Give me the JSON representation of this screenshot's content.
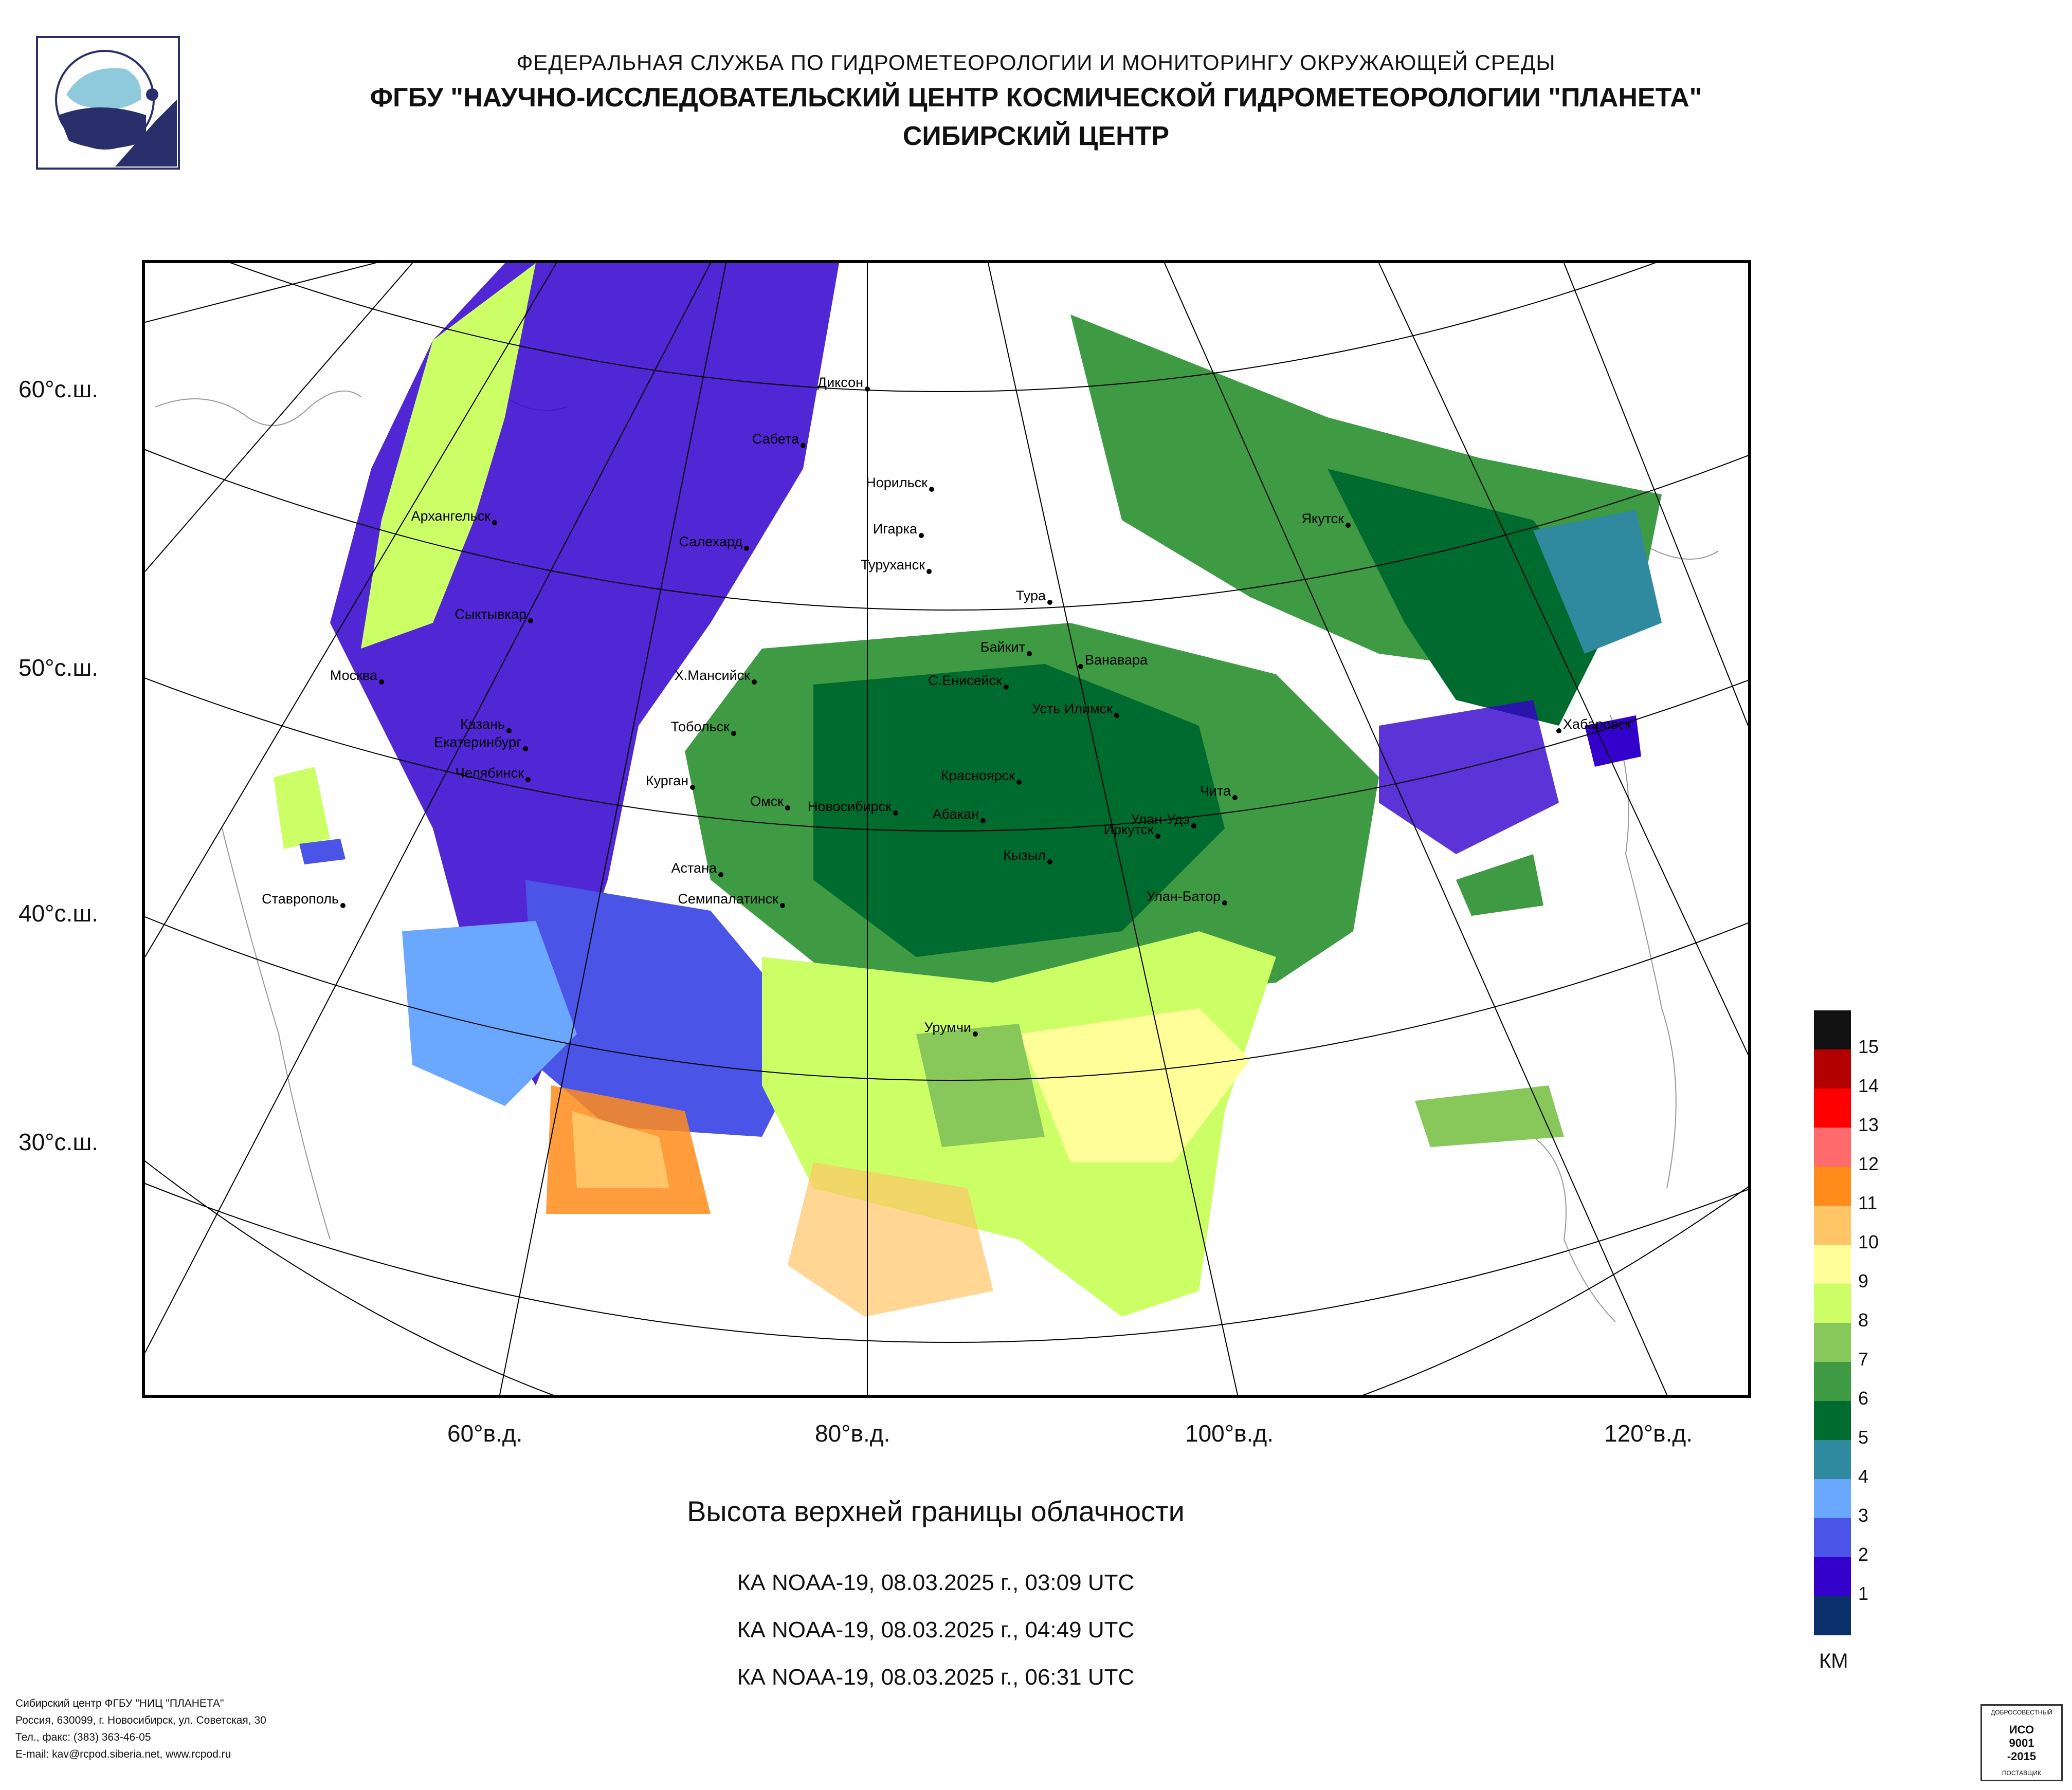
{
  "header": {
    "line1": "ФЕДЕРАЛЬНАЯ СЛУЖБА ПО ГИДРОМЕТЕОРОЛОГИИ И МОНИТОРИНГУ ОКРУЖАЮЩЕЙ СРЕДЫ",
    "line2": "ФГБУ \"НАУЧНО-ИССЛЕДОВАТЕЛЬСКИЙ ЦЕНТР КОСМИЧЕСКОЙ ГИДРОМЕТЕОРОЛОГИИ \"ПЛАНЕТА\"",
    "line3": "СИБИРСКИЙ ЦЕНТР"
  },
  "logo": {
    "icon": "planeta-logo-icon"
  },
  "map": {
    "lat_labels": [
      "60°с.ш.",
      "50°с.ш.",
      "40°с.ш.",
      "30°с.ш."
    ],
    "lon_labels": [
      "60°в.д.",
      "80°в.д.",
      "100°в.д.",
      "120°в.д."
    ],
    "cities": [
      "Диксон",
      "Сабета",
      "Норильск",
      "Игарка",
      "Салехард",
      "Туруханск",
      "Тура",
      "Архангельск",
      "Сыктывкар",
      "Якутск",
      "Байкит",
      "Ванавара",
      "Москва",
      "Х.Мансийск",
      "С.Енисейск",
      "Усть Илимск",
      "Хабаровск",
      "Казань",
      "Тобольск",
      "Екатеринбург",
      "Челябинск",
      "Курган",
      "Красноярск",
      "Чита",
      "Омск",
      "Новосибирск",
      "Абакан",
      "Улан-Удэ",
      "Иркутск",
      "Кызыл",
      "Ставрополь",
      "Астана",
      "Семипалатинск",
      "Улан-Батор",
      "Урумчи"
    ]
  },
  "caption": "Высота верхней границы облачности",
  "passes": [
    "КА NOAA-19, 08.03.2025 г., 03:09 UTC",
    "КА NOAA-19, 08.03.2025 г., 04:49 UTC",
    "КА NOAA-19, 08.03.2025 г., 06:31 UTC"
  ],
  "legend": {
    "unit": "КМ",
    "levels": [
      {
        "label": "15",
        "color": "#111111"
      },
      {
        "label": "14",
        "color": "#b30000"
      },
      {
        "label": "13",
        "color": "#ff0000"
      },
      {
        "label": "12",
        "color": "#ff6a6a"
      },
      {
        "label": "11",
        "color": "#ff8c1a"
      },
      {
        "label": "10",
        "color": "#ffc566"
      },
      {
        "label": "9",
        "color": "#ffff99"
      },
      {
        "label": "8",
        "color": "#ccff66"
      },
      {
        "label": "7",
        "color": "#88c759"
      },
      {
        "label": "6",
        "color": "#3f9a44"
      },
      {
        "label": "5",
        "color": "#006b2e"
      },
      {
        "label": "4",
        "color": "#2f8aa0"
      },
      {
        "label": "3",
        "color": "#6aa8ff"
      },
      {
        "label": "2",
        "color": "#4a55e8"
      },
      {
        "label": "1",
        "color": "#3300cc"
      },
      {
        "label": "",
        "color": "#0a2f6b"
      }
    ]
  },
  "footer": {
    "line1": "Сибирский центр ФГБУ \"НИЦ \"ПЛАНЕТА\"",
    "line2": "Россия, 630099, г. Новосибирск, ул. Советская, 30",
    "line3": "Тел., факс: (383) 363-46-05",
    "line4": "E-mail: kav@rcpod.siberia.net, www.rcpod.ru"
  },
  "iso_badge": {
    "top": "ДОБРОСОВЕСТНЫЙ",
    "main": "ИСО 9001 -2015",
    "bottom": "ПОСТАВЩИК"
  }
}
